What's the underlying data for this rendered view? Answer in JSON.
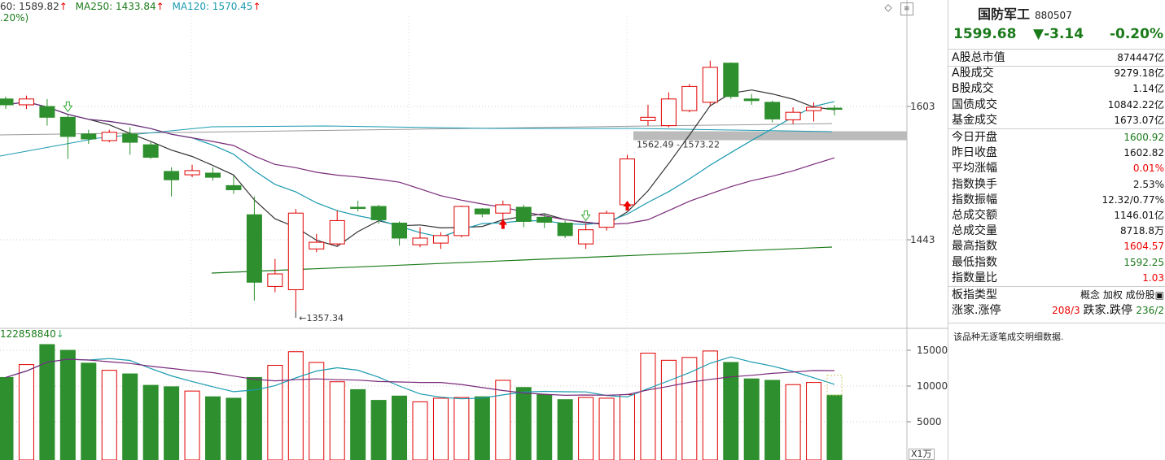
{
  "ma_bar": {
    "ma60": "60: 1589.82",
    "ma250": "MA250: 1433.84",
    "ma120": "MA120: 1570.45",
    "pct_line": ".20%)"
  },
  "icons": {
    "diamond": "◇",
    "menu": "≡"
  },
  "price_axis": [
    "1603",
    "1443"
  ],
  "volume_axis": [
    "15000",
    "10000",
    "5000"
  ],
  "volume_label": "122858840",
  "unit_label": "X1万",
  "annotations": {
    "low": "1357.34",
    "zone": "1562.49 - 1573.22"
  },
  "colors": {
    "up": "#e00000",
    "down": "#2d8f2d",
    "ma5": "#333333",
    "ma10": "#1a9ab0",
    "ma20": "#7a2a7a",
    "ma250": "#1a7a1a"
  },
  "chart_data": {
    "type": "candlestick",
    "candles": [
      {
        "o": 1612,
        "c": 1605,
        "h": 1615,
        "l": 1600,
        "v": 11200
      },
      {
        "o": 1605,
        "c": 1612,
        "h": 1616,
        "l": 1600,
        "v": 13000
      },
      {
        "o": 1603,
        "c": 1590,
        "h": 1612,
        "l": 1580,
        "v": 15800
      },
      {
        "o": 1590,
        "c": 1567,
        "h": 1593,
        "l": 1540,
        "v": 15000
      },
      {
        "o": 1570,
        "c": 1564,
        "h": 1575,
        "l": 1558,
        "v": 13200
      },
      {
        "o": 1562,
        "c": 1572,
        "h": 1575,
        "l": 1560,
        "v": 12200
      },
      {
        "o": 1570,
        "c": 1560,
        "h": 1578,
        "l": 1545,
        "v": 11700
      },
      {
        "o": 1557,
        "c": 1542,
        "h": 1560,
        "l": 1540,
        "v": 10100
      },
      {
        "o": 1525,
        "c": 1515,
        "h": 1530,
        "l": 1495,
        "v": 9900
      },
      {
        "o": 1521,
        "c": 1526,
        "h": 1533,
        "l": 1518,
        "v": 9300
      },
      {
        "o": 1523,
        "c": 1518,
        "h": 1530,
        "l": 1514,
        "v": 8500
      },
      {
        "o": 1508,
        "c": 1503,
        "h": 1520,
        "l": 1498,
        "v": 8300
      },
      {
        "o": 1473,
        "c": 1392,
        "h": 1495,
        "l": 1370,
        "v": 11200
      },
      {
        "o": 1387,
        "c": 1402,
        "h": 1420,
        "l": 1380,
        "v": 12900
      },
      {
        "o": 1383,
        "c": 1475,
        "h": 1480,
        "l": 1357.34,
        "v": 14800
      },
      {
        "o": 1432,
        "c": 1440,
        "h": 1450,
        "l": 1428,
        "v": 13300
      },
      {
        "o": 1438,
        "c": 1466,
        "h": 1478,
        "l": 1436,
        "v": 10600
      },
      {
        "o": 1482,
        "c": 1481,
        "h": 1490,
        "l": 1477,
        "v": 9500
      },
      {
        "o": 1483,
        "c": 1467,
        "h": 1485,
        "l": 1462,
        "v": 8000
      },
      {
        "o": 1463,
        "c": 1445,
        "h": 1465,
        "l": 1436,
        "v": 8600
      },
      {
        "o": 1437,
        "c": 1445,
        "h": 1458,
        "l": 1434,
        "v": 7800
      },
      {
        "o": 1439,
        "c": 1448,
        "h": 1452,
        "l": 1432,
        "v": 8300
      },
      {
        "o": 1448,
        "c": 1483,
        "h": 1484,
        "l": 1446,
        "v": 8400
      },
      {
        "o": 1480,
        "c": 1474,
        "h": 1481,
        "l": 1470,
        "v": 8500
      },
      {
        "o": 1475,
        "c": 1485,
        "h": 1490,
        "l": 1460,
        "v": 10800
      },
      {
        "o": 1482,
        "c": 1465,
        "h": 1485,
        "l": 1458,
        "v": 9800
      },
      {
        "o": 1470,
        "c": 1464,
        "h": 1474,
        "l": 1457,
        "v": 8800
      },
      {
        "o": 1463,
        "c": 1448,
        "h": 1466,
        "l": 1445,
        "v": 8100
      },
      {
        "o": 1438,
        "c": 1455,
        "h": 1462,
        "l": 1432,
        "v": 8400
      },
      {
        "o": 1458,
        "c": 1475,
        "h": 1478,
        "l": 1454,
        "v": 8300
      },
      {
        "o": 1485,
        "c": 1540,
        "h": 1545,
        "l": 1482,
        "v": 8800
      },
      {
        "o": 1586,
        "c": 1590,
        "h": 1605,
        "l": 1580,
        "v": 14600
      },
      {
        "o": 1580,
        "c": 1612,
        "h": 1620,
        "l": 1578,
        "v": 13600
      },
      {
        "o": 1598,
        "c": 1627,
        "h": 1630,
        "l": 1596,
        "v": 14000
      },
      {
        "o": 1608,
        "c": 1650,
        "h": 1658,
        "l": 1604,
        "v": 14900
      },
      {
        "o": 1655,
        "c": 1615,
        "h": 1656,
        "l": 1612,
        "v": 13300
      },
      {
        "o": 1612,
        "c": 1610,
        "h": 1618,
        "l": 1605,
        "v": 11000
      },
      {
        "o": 1608,
        "c": 1588,
        "h": 1610,
        "l": 1584,
        "v": 10800
      },
      {
        "o": 1587,
        "c": 1596,
        "h": 1602,
        "l": 1582,
        "v": 10200
      },
      {
        "o": 1598,
        "c": 1602,
        "h": 1608,
        "l": 1585,
        "v": 10500
      },
      {
        "o": 1601,
        "c": 1599.68,
        "h": 1604.57,
        "l": 1592.25,
        "v": 8718.8
      }
    ],
    "price_ticks": [
      1603,
      1443
    ],
    "volume_ticks": [
      15000,
      10000,
      5000
    ],
    "low_label": "1357.34",
    "zone_label": "1562.49 - 1573.22"
  },
  "info": {
    "name": "国防军工",
    "code": "880507",
    "price": "1599.68",
    "change": "▼-3.14",
    "change_pct": "-0.20%",
    "rows": [
      {
        "k": "A股总市值",
        "v": "874447亿",
        "c": ""
      },
      {
        "k": "A股成交",
        "v": "9279.18亿",
        "c": ""
      },
      {
        "k": "B股成交",
        "v": "1.14亿",
        "c": ""
      },
      {
        "k": "国债成交",
        "v": "10842.22亿",
        "c": ""
      },
      {
        "k": "基金成交",
        "v": "1673.07亿",
        "c": ""
      },
      {
        "k": "今日开盘",
        "v": "1600.92",
        "c": "green"
      },
      {
        "k": "昨日收盘",
        "v": "1602.82",
        "c": ""
      },
      {
        "k": "平均涨幅",
        "v": "0.01%",
        "c": "red"
      },
      {
        "k": "指数换手",
        "v": "2.53%",
        "c": ""
      },
      {
        "k": "指数振幅",
        "v": "12.32/0.77%",
        "c": ""
      },
      {
        "k": "总成交额",
        "v": "1146.01亿",
        "c": ""
      },
      {
        "k": "总成交量",
        "v": "8718.8万",
        "c": ""
      },
      {
        "k": "最高指数",
        "v": "1604.57",
        "c": "red"
      },
      {
        "k": "最低指数",
        "v": "1592.25",
        "c": "green"
      },
      {
        "k": "指数量比",
        "v": "1.03",
        "c": "red"
      },
      {
        "k": "板指类型",
        "v": "概念 加权 成份股▣",
        "c": ""
      },
      {
        "k": "涨家.涨停",
        "v": "208/3 跌家.跌停 236/2",
        "c": "mixed"
      }
    ],
    "no_detail": "该品种无逐笔成交明细数据."
  }
}
